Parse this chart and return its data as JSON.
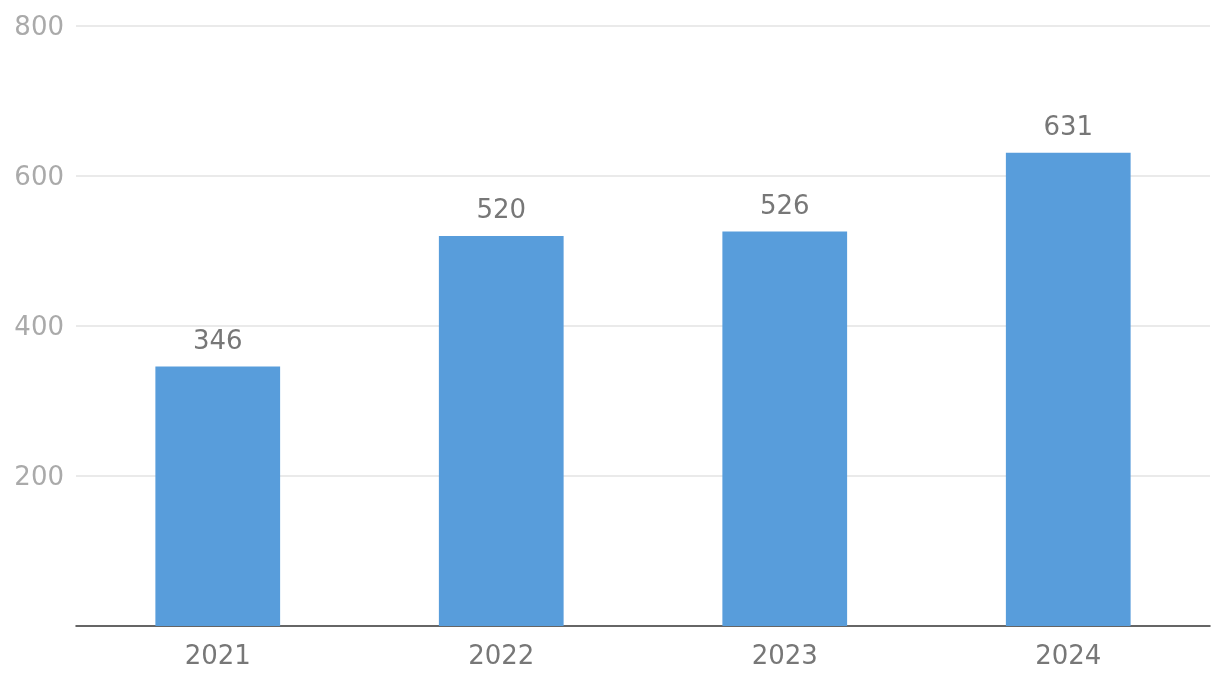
{
  "chart_data": {
    "type": "bar",
    "categories": [
      "2021",
      "2022",
      "2023",
      "2024"
    ],
    "values": [
      346,
      520,
      526,
      631
    ],
    "color": "#589ddb",
    "ylim": [
      0,
      800
    ],
    "yticks": [
      200,
      400,
      600,
      800
    ],
    "grid": "y",
    "data_labels": true
  }
}
